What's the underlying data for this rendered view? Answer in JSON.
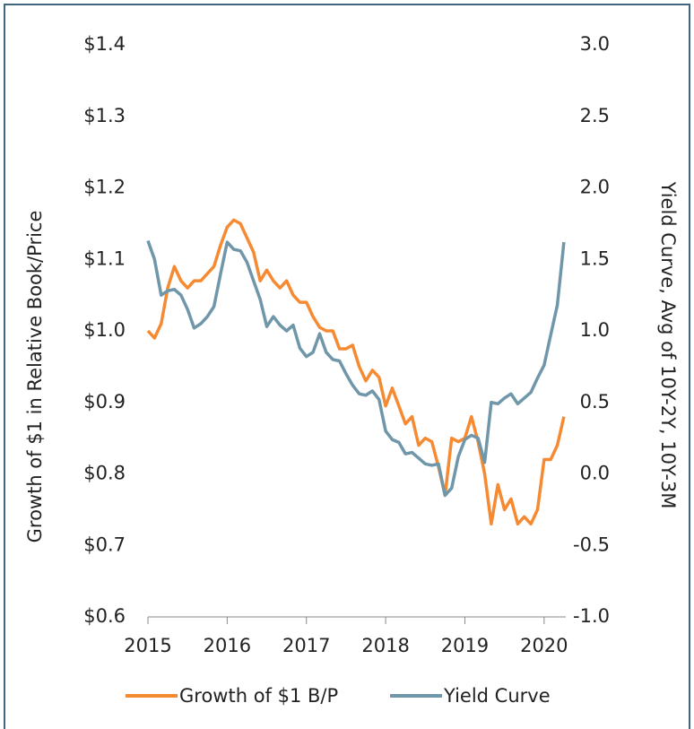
{
  "chart_data": {
    "type": "line",
    "x": [
      2015.0,
      2015.083,
      2015.167,
      2015.25,
      2015.333,
      2015.417,
      2015.5,
      2015.583,
      2015.667,
      2015.75,
      2015.833,
      2015.917,
      2016.0,
      2016.083,
      2016.167,
      2016.25,
      2016.333,
      2016.417,
      2016.5,
      2016.583,
      2016.667,
      2016.75,
      2016.833,
      2016.917,
      2017.0,
      2017.083,
      2017.167,
      2017.25,
      2017.333,
      2017.417,
      2017.5,
      2017.583,
      2017.667,
      2017.75,
      2017.833,
      2017.917,
      2018.0,
      2018.083,
      2018.167,
      2018.25,
      2018.333,
      2018.417,
      2018.5,
      2018.583,
      2018.667,
      2018.75,
      2018.833,
      2018.917,
      2019.0,
      2019.083,
      2019.167,
      2019.25,
      2019.333,
      2019.417,
      2019.5,
      2019.583,
      2019.667,
      2019.75,
      2019.833,
      2019.917,
      2020.0,
      2020.083,
      2020.167,
      2020.25
    ],
    "series": [
      {
        "name": "Growth of $1 B/P",
        "color": "#f58a32",
        "axis": "y",
        "values": [
          1.0,
          0.99,
          1.01,
          1.06,
          1.09,
          1.07,
          1.06,
          1.07,
          1.07,
          1.08,
          1.09,
          1.12,
          1.145,
          1.155,
          1.15,
          1.13,
          1.11,
          1.07,
          1.085,
          1.07,
          1.06,
          1.07,
          1.05,
          1.04,
          1.04,
          1.02,
          1.005,
          1.0,
          1.0,
          0.975,
          0.975,
          0.98,
          0.95,
          0.93,
          0.945,
          0.935,
          0.895,
          0.92,
          0.895,
          0.87,
          0.88,
          0.84,
          0.85,
          0.845,
          0.81,
          0.77,
          0.85,
          0.845,
          0.85,
          0.88,
          0.845,
          0.8,
          0.73,
          0.785,
          0.75,
          0.765,
          0.73,
          0.74,
          0.73,
          0.75,
          0.82,
          0.82,
          0.84,
          0.88
        ]
      },
      {
        "name": "Yield Curve",
        "color": "#6f97a9",
        "axis": "y2",
        "values": [
          1.63,
          1.5,
          1.25,
          1.28,
          1.29,
          1.25,
          1.15,
          1.02,
          1.05,
          1.1,
          1.17,
          1.4,
          1.62,
          1.57,
          1.56,
          1.48,
          1.35,
          1.22,
          1.03,
          1.1,
          1.04,
          1.0,
          1.04,
          0.88,
          0.82,
          0.85,
          0.98,
          0.85,
          0.8,
          0.79,
          0.7,
          0.62,
          0.56,
          0.55,
          0.58,
          0.52,
          0.3,
          0.24,
          0.22,
          0.14,
          0.15,
          0.11,
          0.07,
          0.06,
          0.07,
          -0.15,
          -0.1,
          0.12,
          0.24,
          0.27,
          0.25,
          0.08,
          0.5,
          0.49,
          0.53,
          0.56,
          0.49,
          0.53,
          0.57,
          0.67,
          0.76,
          0.97,
          1.18,
          1.62
        ]
      }
    ],
    "y_label": "Growth of $1 in Relative Book/Price",
    "y2_label": "Yield Curve, Avg  of 10Y-2Y, 10Y-3M",
    "xlim": [
      2015,
      2020.5
    ],
    "xticks": [
      2015,
      2016,
      2017,
      2018,
      2019,
      2020
    ],
    "ylim": [
      0.6,
      1.4
    ],
    "yticks": [
      {
        "value": 0.6,
        "label": "$0.6"
      },
      {
        "value": 0.7,
        "label": "$0.7"
      },
      {
        "value": 0.8,
        "label": "$0.8"
      },
      {
        "value": 0.9,
        "label": "$0.9"
      },
      {
        "value": 1.0,
        "label": "$1.0"
      },
      {
        "value": 1.1,
        "label": "$1.1"
      },
      {
        "value": 1.2,
        "label": "$1.2"
      },
      {
        "value": 1.3,
        "label": "$1.3"
      },
      {
        "value": 1.4,
        "label": "$1.4"
      }
    ],
    "y2lim": [
      -1.0,
      3.0
    ],
    "y2ticks": [
      {
        "value": -1.0,
        "label": "-1.0"
      },
      -0.5,
      {
        "value": 0.0,
        "label": "0.0"
      },
      0.5,
      {
        "value": 1.0,
        "label": "1.0"
      },
      1.5,
      {
        "value": 2.0,
        "label": "2.0"
      },
      2.5,
      {
        "value": 3.0,
        "label": "3.0"
      }
    ],
    "legend": "bottom"
  }
}
